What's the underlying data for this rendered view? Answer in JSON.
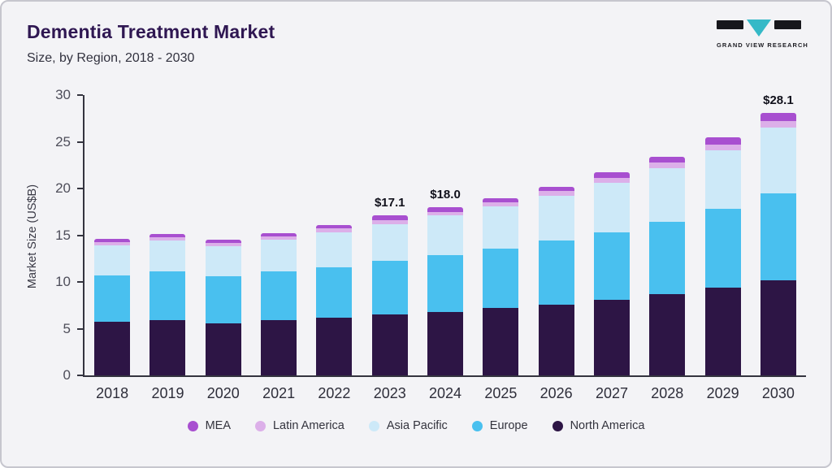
{
  "header": {
    "title": "Dementia Treatment Market",
    "subtitle": "Size, by Region, 2018 - 2030",
    "logo_text": "GRAND VIEW RESEARCH"
  },
  "colors": {
    "card_background": "#f3f3f6",
    "title_text": "#2f1752",
    "axis_line": "#34343f",
    "logo_teal": "#35b9c7",
    "logo_black": "#17171c"
  },
  "chart_data": {
    "type": "bar",
    "stacked": true,
    "title": "Dementia Treatment Market",
    "subtitle": "Size, by Region, 2018 - 2030",
    "xlabel": "",
    "ylabel": "Market Size (US$B)",
    "ylim": [
      0,
      30
    ],
    "yticks": [
      0,
      5,
      10,
      15,
      20,
      25,
      30
    ],
    "grid": false,
    "legend_position": "bottom",
    "categories": [
      "2018",
      "2019",
      "2020",
      "2021",
      "2022",
      "2023",
      "2024",
      "2025",
      "2026",
      "2027",
      "2028",
      "2029",
      "2030"
    ],
    "series": [
      {
        "name": "North America",
        "color": "#2d1545",
        "values": [
          5.7,
          5.9,
          5.6,
          5.9,
          6.2,
          6.5,
          6.8,
          7.2,
          7.6,
          8.1,
          8.7,
          9.4,
          10.2
        ]
      },
      {
        "name": "Europe",
        "color": "#49c0ef",
        "values": [
          5.0,
          5.2,
          5.0,
          5.2,
          5.4,
          5.8,
          6.1,
          6.4,
          6.8,
          7.2,
          7.7,
          8.4,
          9.3
        ]
      },
      {
        "name": "Asia Pacific",
        "color": "#cde9f8",
        "values": [
          3.2,
          3.3,
          3.2,
          3.4,
          3.7,
          3.9,
          4.2,
          4.5,
          4.8,
          5.3,
          5.8,
          6.3,
          7.0
        ]
      },
      {
        "name": "Latin America",
        "color": "#dcafe9",
        "values": [
          0.4,
          0.4,
          0.4,
          0.4,
          0.4,
          0.4,
          0.4,
          0.4,
          0.5,
          0.5,
          0.55,
          0.6,
          0.7
        ]
      },
      {
        "name": "MEA",
        "color": "#a84fd0",
        "values": [
          0.3,
          0.3,
          0.3,
          0.3,
          0.4,
          0.5,
          0.5,
          0.5,
          0.5,
          0.6,
          0.65,
          0.8,
          0.9
        ]
      }
    ],
    "legend_order": [
      "MEA",
      "Latin America",
      "Asia Pacific",
      "Europe",
      "North America"
    ],
    "annotations": [
      {
        "category": "2023",
        "text": "$17.1"
      },
      {
        "category": "2024",
        "text": "$18.0"
      },
      {
        "category": "2030",
        "text": "$28.1"
      }
    ],
    "totals": [
      14.6,
      15.1,
      14.5,
      15.2,
      16.1,
      17.1,
      18.0,
      19.0,
      20.2,
      21.7,
      23.4,
      25.5,
      28.1
    ]
  }
}
